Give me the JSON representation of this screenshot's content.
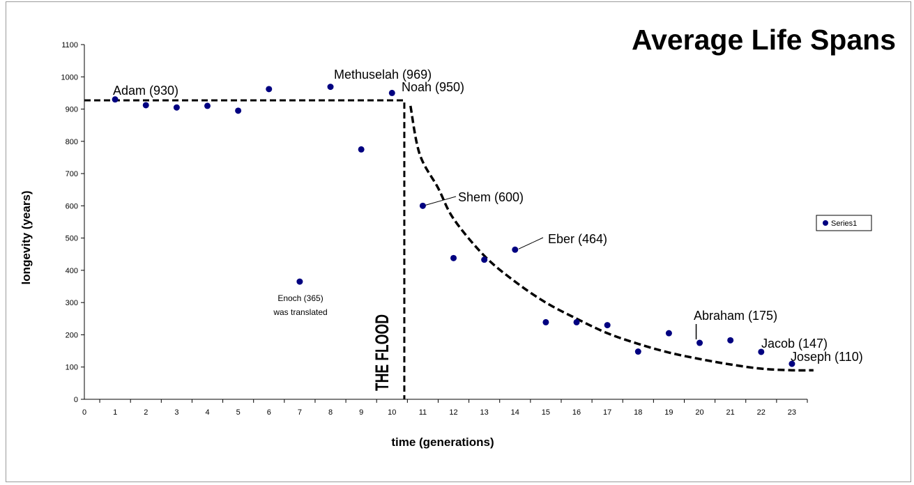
{
  "chart_data": {
    "type": "scatter",
    "title": "Average Life Spans",
    "xlabel": "time (generations)",
    "ylabel": "longevity (years)",
    "xlim": [
      0,
      23.5
    ],
    "ylim": [
      0,
      1100
    ],
    "xticks": [
      "0",
      "1",
      "2",
      "3",
      "4",
      "5",
      "6",
      "7",
      "8",
      "9",
      "10",
      "11",
      "12",
      "13",
      "14",
      "15",
      "16",
      "17",
      "18",
      "19",
      "20",
      "21",
      "22",
      "23"
    ],
    "yticks": [
      "0",
      "100",
      "200",
      "300",
      "400",
      "500",
      "600",
      "700",
      "800",
      "900",
      "1000",
      "1100"
    ],
    "grid": false,
    "legend_position": "right",
    "marker_color": "#000080",
    "series": [
      {
        "name": "Series1",
        "points": [
          {
            "x": 1,
            "y": 930
          },
          {
            "x": 2,
            "y": 912
          },
          {
            "x": 3,
            "y": 905
          },
          {
            "x": 4,
            "y": 910
          },
          {
            "x": 5,
            "y": 895
          },
          {
            "x": 6,
            "y": 962
          },
          {
            "x": 7,
            "y": 365
          },
          {
            "x": 8,
            "y": 969
          },
          {
            "x": 9,
            "y": 775
          },
          {
            "x": 10,
            "y": 950
          },
          {
            "x": 11,
            "y": 600
          },
          {
            "x": 12,
            "y": 438
          },
          {
            "x": 13,
            "y": 433
          },
          {
            "x": 14,
            "y": 464
          },
          {
            "x": 15,
            "y": 239
          },
          {
            "x": 16,
            "y": 239
          },
          {
            "x": 17,
            "y": 230
          },
          {
            "x": 18,
            "y": 148
          },
          {
            "x": 19,
            "y": 205
          },
          {
            "x": 20,
            "y": 175
          },
          {
            "x": 21,
            "y": 183
          },
          {
            "x": 22,
            "y": 147
          },
          {
            "x": 23,
            "y": 110
          }
        ]
      }
    ],
    "flood_line": {
      "pre_flood_level": 927,
      "flood_x": 10.4
    },
    "decay_curve": [
      {
        "x": 10.6,
        "y": 910
      },
      {
        "x": 10.9,
        "y": 760
      },
      {
        "x": 11.5,
        "y": 655
      },
      {
        "x": 12,
        "y": 560
      },
      {
        "x": 13,
        "y": 445
      },
      {
        "x": 14,
        "y": 365
      },
      {
        "x": 15,
        "y": 300
      },
      {
        "x": 16,
        "y": 250
      },
      {
        "x": 17,
        "y": 205
      },
      {
        "x": 18,
        "y": 172
      },
      {
        "x": 19,
        "y": 145
      },
      {
        "x": 20,
        "y": 125
      },
      {
        "x": 21,
        "y": 108
      },
      {
        "x": 22,
        "y": 95
      },
      {
        "x": 23,
        "y": 90
      },
      {
        "x": 23.7,
        "y": 90
      }
    ],
    "annotations": {
      "adam": "Adam (930)",
      "methuselah": "Methuselah (969)",
      "noah": "Noah (950)",
      "shem": "Shem (600)",
      "eber": "Eber (464)",
      "enoch_line1": "Enoch (365)",
      "enoch_line2": "was translated",
      "abraham": "Abraham (175)",
      "jacob": "Jacob (147)",
      "joseph": "Joseph (110)",
      "flood": "THE FLOOD"
    }
  }
}
